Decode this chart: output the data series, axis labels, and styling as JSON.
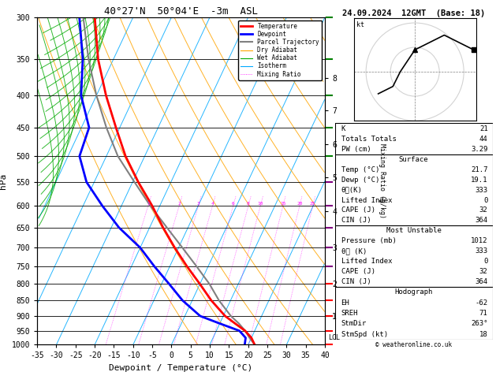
{
  "title_left": "40°27'N  50°04'E  -3m  ASL",
  "title_right": "24.09.2024  12GMT  (Base: 18)",
  "xlabel": "Dewpoint / Temperature (°C)",
  "ylabel_left": "hPa",
  "pressure_levels": [
    300,
    350,
    400,
    450,
    500,
    550,
    600,
    650,
    700,
    750,
    800,
    850,
    900,
    950,
    1000
  ],
  "xlim": [
    -35,
    40
  ],
  "temp_profile_p": [
    1000,
    975,
    950,
    925,
    900,
    850,
    800,
    750,
    700,
    650,
    600,
    550,
    500,
    450,
    400,
    350,
    300
  ],
  "temp_profile_t": [
    21.7,
    20.0,
    17.5,
    14.0,
    10.5,
    5.0,
    0.0,
    -5.5,
    -11.0,
    -16.5,
    -22.0,
    -28.5,
    -35.0,
    -41.0,
    -47.5,
    -54.0,
    -60.0
  ],
  "dewp_profile_p": [
    1000,
    975,
    950,
    925,
    900,
    850,
    800,
    750,
    700,
    650,
    600,
    550,
    500,
    450,
    400,
    350,
    300
  ],
  "dewp_profile_t": [
    19.1,
    18.5,
    16.0,
    10.0,
    4.0,
    -2.5,
    -8.0,
    -14.0,
    -20.0,
    -28.0,
    -35.0,
    -42.0,
    -47.0,
    -48.0,
    -54.0,
    -58.0,
    -64.0
  ],
  "parcel_profile_p": [
    1000,
    975,
    950,
    925,
    900,
    850,
    800,
    750,
    700,
    650,
    600,
    550,
    500,
    450,
    400,
    350,
    300
  ],
  "parcel_profile_t": [
    21.7,
    19.5,
    17.5,
    15.0,
    12.0,
    7.0,
    2.5,
    -3.0,
    -9.0,
    -15.5,
    -22.5,
    -29.5,
    -37.0,
    -43.5,
    -50.0,
    -56.5,
    -63.0
  ],
  "temp_color": "#ff0000",
  "dewp_color": "#0000ff",
  "parcel_color": "#808080",
  "dry_adiabat_color": "#ffa500",
  "wet_adiabat_color": "#00aa00",
  "isotherm_color": "#00aaff",
  "mixing_ratio_color": "#ff00ff",
  "mixing_ratio_lines": [
    1,
    2,
    3,
    4,
    6,
    8,
    10,
    15,
    20,
    25
  ],
  "mixing_ratio_label_p": 600,
  "km_ticks": [
    1,
    2,
    3,
    4,
    5,
    6,
    7,
    8
  ],
  "km_pressures": [
    900,
    800,
    700,
    612,
    541,
    478,
    423,
    375
  ],
  "lcl_pressure": 975,
  "K": "21",
  "TT": "44",
  "PW": "3.29",
  "surf_temp": "21.7",
  "surf_dewp": "19.1",
  "surf_thetae": "333",
  "surf_li": "0",
  "surf_cape": "32",
  "surf_cin": "364",
  "mu_pres": "1012",
  "mu_thetae": "333",
  "mu_li": "0",
  "mu_cape": "32",
  "mu_cin": "364",
  "hodo_eh": "-62",
  "hodo_sreh": "71",
  "hodo_stmdir": "263°",
  "hodo_stmspd": "18",
  "hodo_winds_u": [
    -15,
    -9,
    -6,
    0,
    12,
    24
  ],
  "hodo_winds_v": [
    -9,
    -6,
    0,
    9,
    15,
    9
  ],
  "wind_barbs_p": [
    1000,
    950,
    900,
    850,
    800,
    750,
    700,
    650,
    600,
    550,
    500,
    450,
    400,
    350,
    300
  ],
  "wind_barbs_col": [
    "#ff0000",
    "#ff0000",
    "#ff0000",
    "#ff0000",
    "#ff0000",
    "#800080",
    "#800080",
    "#800080",
    "#800080",
    "#800080",
    "#008000",
    "#008000",
    "#008000",
    "#008000",
    "#008000"
  ]
}
